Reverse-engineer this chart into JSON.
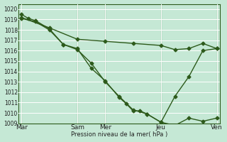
{
  "bg_color": "#c5e8d5",
  "grid_color": "#b0d8c0",
  "line_color": "#2d5a1b",
  "ylabel": "Pression niveau de la mer( hPa )",
  "ylim": [
    1009,
    1020.5
  ],
  "yticks": [
    1009,
    1010,
    1011,
    1012,
    1013,
    1014,
    1015,
    1016,
    1017,
    1018,
    1019,
    1020
  ],
  "xtick_labels": [
    "Mar",
    "Sam",
    "Mer",
    "Jeu",
    "Ven"
  ],
  "xtick_positions": [
    0,
    4,
    6,
    10,
    14
  ],
  "vline_positions": [
    4,
    6,
    10,
    14
  ],
  "xlim": [
    -0.2,
    14.2
  ],
  "series1": {
    "x": [
      0,
      0.5,
      1,
      2,
      3,
      4,
      5,
      6,
      7,
      7.5,
      8,
      8.5,
      9,
      10,
      11,
      12,
      13,
      14
    ],
    "y": [
      1019.5,
      1019.1,
      1018.9,
      1018.1,
      1016.6,
      1016.2,
      1014.3,
      1013.1,
      1011.5,
      1010.9,
      1010.2,
      1010.2,
      1009.9,
      1009.1,
      1008.8,
      1009.5,
      1009.2,
      1009.5
    ]
  },
  "series2": {
    "x": [
      0,
      1,
      2,
      3,
      4,
      5,
      6,
      7,
      8,
      9,
      10,
      11,
      12,
      13,
      14
    ],
    "y": [
      1019.1,
      1018.8,
      1018.0,
      1016.6,
      1016.1,
      1014.8,
      1013.0,
      1011.6,
      1010.3,
      1009.9,
      1009.1,
      1011.6,
      1013.5,
      1016.0,
      1016.2
    ]
  },
  "series3": {
    "x": [
      0,
      2,
      4,
      6,
      8,
      10,
      11,
      12,
      13,
      14
    ],
    "y": [
      1019.2,
      1018.2,
      1017.1,
      1016.9,
      1016.7,
      1016.5,
      1016.1,
      1016.2,
      1016.7,
      1016.2
    ]
  },
  "figsize": [
    3.2,
    2.0
  ],
  "dpi": 100
}
